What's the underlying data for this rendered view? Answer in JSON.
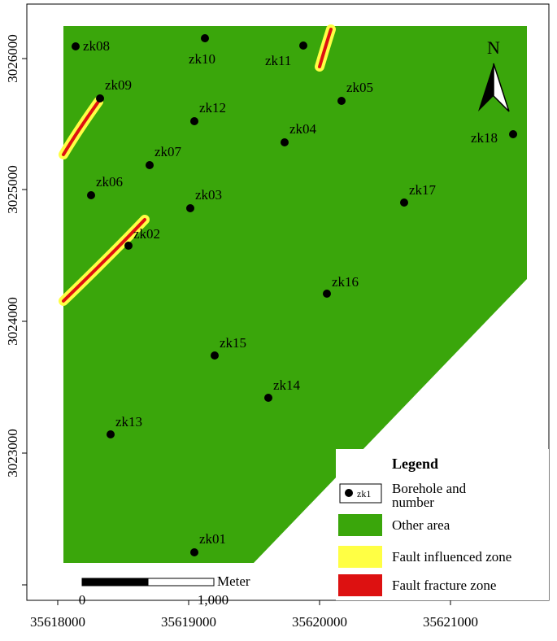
{
  "map": {
    "colors": {
      "other_area": "#3aa60b",
      "fault_influenced": "#ffff44",
      "fault_fracture": "#dd1111"
    },
    "x_ticks": [
      "35618000",
      "35619000",
      "35620000",
      "35621000"
    ],
    "y_ticks": [
      "3026000",
      "3025000",
      "3024000",
      "3023000"
    ],
    "boreholes": [
      {
        "name": "zk08"
      },
      {
        "name": "zk10"
      },
      {
        "name": "zk11"
      },
      {
        "name": "zk09"
      },
      {
        "name": "zk05"
      },
      {
        "name": "zk12"
      },
      {
        "name": "zk04"
      },
      {
        "name": "zk18"
      },
      {
        "name": "zk07"
      },
      {
        "name": "zk06"
      },
      {
        "name": "zk03"
      },
      {
        "name": "zk17"
      },
      {
        "name": "zk02"
      },
      {
        "name": "zk16"
      },
      {
        "name": "zk15"
      },
      {
        "name": "zk14"
      },
      {
        "name": "zk13"
      },
      {
        "name": "zk01"
      }
    ]
  },
  "north_arrow": {
    "label": "N"
  },
  "scale_bar": {
    "unit": "Meter",
    "start": "0",
    "end": "1,000"
  },
  "legend": {
    "title": "Legend",
    "borehole_sample": "zk1",
    "borehole_label_line1": "Borehole and",
    "borehole_label_line2": "number",
    "other_area": "Other area",
    "fault_influenced": "Fault influenced zone",
    "fault_fracture": "Fault fracture zone"
  }
}
